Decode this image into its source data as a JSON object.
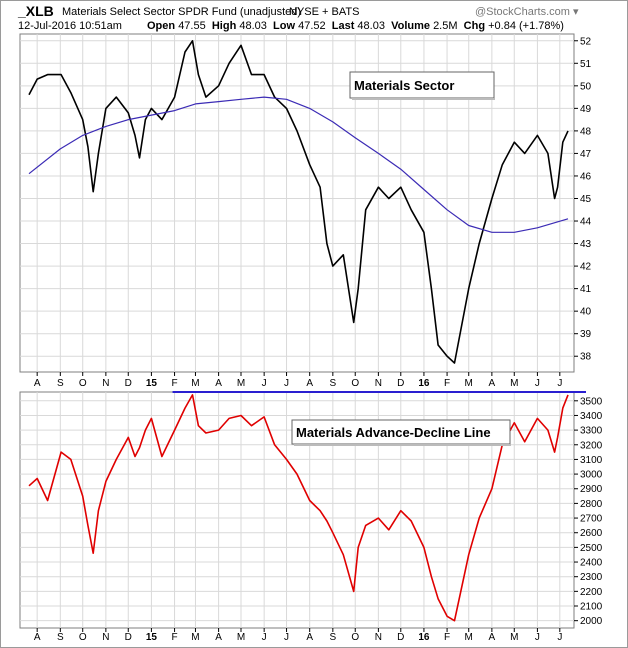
{
  "header": {
    "ticker": "_XLB",
    "fund_name": "Materials Select Sector SPDR Fund (unadjusted)",
    "exchange": "NYSE + BATS",
    "date_time": "12-Jul-2016 10:51am",
    "open_label": "Open",
    "open": "47.55",
    "high_label": "High",
    "high": "48.03",
    "low_label": "Low",
    "low": "47.52",
    "last_label": "Last",
    "last": "48.03",
    "volume_label": "Volume",
    "volume": "2.5M",
    "chg_label": "Chg",
    "chg": "+0.84 (+1.78%)",
    "source": "@StockCharts.com",
    "source_arrow": "▾"
  },
  "colors": {
    "price_line": "#000000",
    "moving_average": "#3b2bb5",
    "ad_line": "#e00000",
    "resistance_line": "#2a1fd0",
    "grid": "#d9d9d9",
    "panel_border": "#7f7f7f"
  },
  "chart_data": [
    {
      "type": "line",
      "annotation": "Materials Sector",
      "x_ticks": [
        "A",
        "S",
        "O",
        "N",
        "D",
        "15",
        "F",
        "M",
        "A",
        "M",
        "J",
        "J",
        "A",
        "S",
        "O",
        "N",
        "D",
        "16",
        "F",
        "M",
        "A",
        "M",
        "J",
        "J"
      ],
      "x_ticks_bold": [
        "15",
        "16"
      ],
      "y_ticks": [
        38,
        39,
        40,
        41,
        42,
        43,
        44,
        45,
        46,
        47,
        48,
        49,
        50,
        51,
        52
      ],
      "ylim": [
        37.3,
        52.3
      ],
      "grid": true,
      "series": [
        {
          "role": "price",
          "x": [
            "2014-07-21",
            "2014-08-01",
            "2014-08-15",
            "2014-09-02",
            "2014-09-15",
            "2014-10-01",
            "2014-10-08",
            "2014-10-15",
            "2014-10-22",
            "2014-11-01",
            "2014-11-15",
            "2014-12-01",
            "2014-12-10",
            "2014-12-16",
            "2014-12-24",
            "2015-01-01",
            "2015-01-15",
            "2015-02-01",
            "2015-02-15",
            "2015-02-25",
            "2015-03-05",
            "2015-03-15",
            "2015-04-01",
            "2015-04-15",
            "2015-05-01",
            "2015-05-15",
            "2015-06-01",
            "2015-06-15",
            "2015-07-01",
            "2015-07-15",
            "2015-08-01",
            "2015-08-15",
            "2015-08-24",
            "2015-09-01",
            "2015-09-15",
            "2015-09-29",
            "2015-10-05",
            "2015-10-15",
            "2015-11-01",
            "2015-11-15",
            "2015-12-01",
            "2015-12-15",
            "2016-01-01",
            "2016-01-11",
            "2016-01-20",
            "2016-02-01",
            "2016-02-11",
            "2016-03-01",
            "2016-03-15",
            "2016-04-01",
            "2016-04-15",
            "2016-05-01",
            "2016-05-15",
            "2016-06-01",
            "2016-06-15",
            "2016-06-24",
            "2016-06-28",
            "2016-07-05",
            "2016-07-12"
          ],
          "values": [
            49.6,
            50.3,
            50.5,
            50.5,
            49.7,
            48.5,
            47.3,
            45.3,
            47.0,
            49.0,
            49.5,
            48.8,
            47.8,
            46.8,
            48.5,
            49.0,
            48.5,
            49.5,
            51.5,
            52.0,
            50.5,
            49.5,
            50.0,
            51.0,
            51.8,
            50.5,
            50.5,
            49.5,
            49.0,
            48.0,
            46.5,
            45.5,
            43.0,
            42.0,
            42.5,
            39.5,
            41.0,
            44.5,
            45.5,
            45.0,
            45.5,
            44.5,
            43.5,
            41.0,
            38.5,
            38.0,
            37.7,
            41.0,
            43.0,
            45.0,
            46.5,
            47.5,
            47.0,
            47.8,
            47.0,
            45.0,
            45.5,
            47.5,
            48.0
          ]
        },
        {
          "role": "moving_average",
          "x": [
            "2014-07-21",
            "2014-09-01",
            "2014-10-01",
            "2014-11-01",
            "2014-12-01",
            "2015-01-01",
            "2015-02-01",
            "2015-03-01",
            "2015-04-01",
            "2015-05-01",
            "2015-06-01",
            "2015-07-01",
            "2015-08-01",
            "2015-09-01",
            "2015-10-01",
            "2015-11-01",
            "2015-12-01",
            "2016-01-01",
            "2016-02-01",
            "2016-03-01",
            "2016-04-01",
            "2016-05-01",
            "2016-06-01",
            "2016-07-12"
          ],
          "values": [
            46.1,
            47.2,
            47.8,
            48.2,
            48.5,
            48.7,
            48.9,
            49.2,
            49.3,
            49.4,
            49.5,
            49.4,
            49.0,
            48.4,
            47.7,
            47.0,
            46.3,
            45.4,
            44.5,
            43.8,
            43.5,
            43.5,
            43.7,
            44.1
          ]
        }
      ]
    },
    {
      "type": "line",
      "annotation": "Materials Advance-Decline Line",
      "x_ticks": [
        "A",
        "S",
        "O",
        "N",
        "D",
        "15",
        "F",
        "M",
        "A",
        "M",
        "J",
        "J",
        "A",
        "S",
        "O",
        "N",
        "D",
        "16",
        "F",
        "M",
        "A",
        "M",
        "J",
        "J"
      ],
      "x_ticks_bold": [
        "15",
        "16"
      ],
      "y_ticks": [
        2000,
        2100,
        2200,
        2300,
        2400,
        2500,
        2600,
        2700,
        2800,
        2900,
        3000,
        3100,
        3200,
        3300,
        3400,
        3500
      ],
      "ylim": [
        1950,
        3560
      ],
      "grid": true,
      "reference_level": 3560,
      "series": [
        {
          "role": "advance_decline",
          "x": [
            "2014-07-21",
            "2014-08-01",
            "2014-08-15",
            "2014-09-02",
            "2014-09-15",
            "2014-10-01",
            "2014-10-08",
            "2014-10-15",
            "2014-10-22",
            "2014-11-01",
            "2014-11-15",
            "2014-12-01",
            "2014-12-10",
            "2014-12-16",
            "2014-12-24",
            "2015-01-01",
            "2015-01-15",
            "2015-02-01",
            "2015-02-15",
            "2015-02-25",
            "2015-03-05",
            "2015-03-15",
            "2015-04-01",
            "2015-04-15",
            "2015-05-01",
            "2015-05-15",
            "2015-06-01",
            "2015-06-15",
            "2015-07-01",
            "2015-07-15",
            "2015-08-01",
            "2015-08-15",
            "2015-08-24",
            "2015-09-01",
            "2015-09-15",
            "2015-09-29",
            "2015-10-05",
            "2015-10-15",
            "2015-11-01",
            "2015-11-15",
            "2015-12-01",
            "2015-12-15",
            "2016-01-01",
            "2016-01-11",
            "2016-01-20",
            "2016-02-01",
            "2016-02-11",
            "2016-03-01",
            "2016-03-15",
            "2016-04-01",
            "2016-04-15",
            "2016-05-01",
            "2016-05-15",
            "2016-06-01",
            "2016-06-15",
            "2016-06-24",
            "2016-06-28",
            "2016-07-05",
            "2016-07-12"
          ],
          "values": [
            2920,
            2970,
            2820,
            3150,
            3100,
            2850,
            2650,
            2460,
            2750,
            2950,
            3100,
            3250,
            3120,
            3180,
            3300,
            3380,
            3120,
            3300,
            3450,
            3540,
            3330,
            3280,
            3300,
            3380,
            3400,
            3330,
            3390,
            3200,
            3100,
            3000,
            2820,
            2750,
            2680,
            2600,
            2450,
            2200,
            2500,
            2650,
            2700,
            2620,
            2750,
            2680,
            2500,
            2300,
            2150,
            2030,
            2000,
            2450,
            2700,
            2900,
            3200,
            3350,
            3220,
            3380,
            3300,
            3150,
            3250,
            3450,
            3540
          ]
        }
      ]
    }
  ]
}
